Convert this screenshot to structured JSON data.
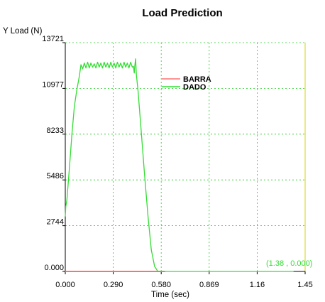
{
  "chart_data": {
    "type": "line",
    "title": "Load Prediction",
    "ylabel": "Y Load (N)",
    "xlabel": "Time (sec)",
    "x_ticks": [
      "0.000",
      "0.290",
      "0.580",
      "0.869",
      "1.16",
      "1.45"
    ],
    "y_ticks": [
      "0.000",
      "2744",
      "5486",
      "8233",
      "10977",
      "13721"
    ],
    "xlim": [
      0,
      1.45
    ],
    "ylim": [
      0,
      13721
    ],
    "grid": true,
    "legend_position": "top-right",
    "annotation": "(1.38 , 0.000)",
    "colors": {
      "BARRA": "#ff7070",
      "DADO": "#33dd33",
      "grid": "#22cc22",
      "right_edge": "#dddd33"
    },
    "series": [
      {
        "name": "BARRA",
        "x": [
          0,
          0.2,
          0.4,
          0.6,
          0.58
        ],
        "y": [
          0,
          0,
          0,
          0,
          0
        ]
      },
      {
        "name": "DADO",
        "x": [
          0.0,
          0.003,
          0.01,
          0.025,
          0.04,
          0.055,
          0.07,
          0.085,
          0.095,
          0.105,
          0.115,
          0.125,
          0.135,
          0.145,
          0.155,
          0.165,
          0.175,
          0.185,
          0.195,
          0.205,
          0.215,
          0.225,
          0.235,
          0.245,
          0.255,
          0.265,
          0.275,
          0.285,
          0.295,
          0.305,
          0.315,
          0.325,
          0.335,
          0.345,
          0.355,
          0.365,
          0.375,
          0.385,
          0.395,
          0.405,
          0.412,
          0.417,
          0.42,
          0.425,
          0.43,
          0.44,
          0.46,
          0.48,
          0.5,
          0.52,
          0.54,
          0.56,
          0.58,
          0.6,
          0.8,
          1.0,
          1.2,
          1.38
        ],
        "y": [
          3300,
          3900,
          4300,
          6200,
          8200,
          9900,
          10900,
          11700,
          12400,
          12150,
          12500,
          12200,
          12550,
          12200,
          12500,
          12250,
          12450,
          12200,
          12550,
          12250,
          12500,
          12200,
          12550,
          12250,
          12500,
          12200,
          12550,
          12250,
          12500,
          12200,
          12550,
          12250,
          12500,
          12200,
          12550,
          12250,
          12500,
          12200,
          12550,
          12250,
          12300,
          11900,
          12300,
          12750,
          11800,
          10800,
          8300,
          5700,
          3300,
          1300,
          300,
          0,
          0,
          0,
          0,
          0,
          0,
          0
        ]
      }
    ]
  }
}
